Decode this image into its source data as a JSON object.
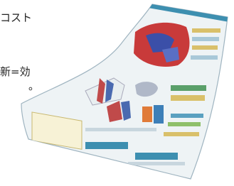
{
  "text": {
    "lines": [
      "コスト",
      "新=効",
      "。"
    ]
  }
}
